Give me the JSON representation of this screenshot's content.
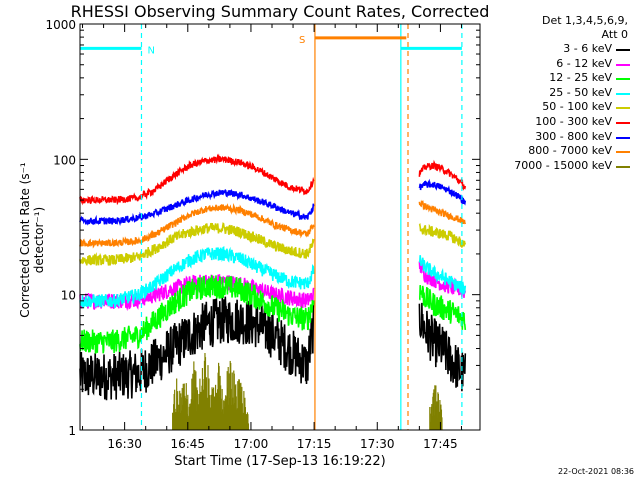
{
  "title": "RHESSI Observing Summary Count Rates, Corrected",
  "det_line1": "Det 1,3,4,5,6,9,",
  "det_line2": "Att 0",
  "timestamp": "22-Oct-2021 08:36",
  "chart_data": {
    "type": "line",
    "title": "RHESSI Observing Summary Count Rates, Corrected",
    "xlabel": "Start Time (17-Sep-13 16:19:22)",
    "ylabel": "Corrected Count Rate (s⁻¹ detector⁻¹)",
    "y_scale": "log",
    "ylim": [
      1,
      1000
    ],
    "xlim_minutes_after_1619": [
      0,
      95
    ],
    "x_tick_labels": [
      "16:30",
      "16:45",
      "17:00",
      "17:15",
      "17:30",
      "17:45"
    ],
    "x_tick_minutes": [
      10.6,
      25.6,
      40.6,
      55.6,
      70.6,
      85.6
    ],
    "y_tick_labels": [
      "1",
      "10",
      "100",
      "1000"
    ],
    "y_tick_values": [
      1,
      10,
      100,
      1000
    ],
    "grid": false,
    "legend_position": "right",
    "data_gaps_minutes": [
      [
        55.6,
        80.5
      ]
    ],
    "markers": [
      {
        "label": "N",
        "color": "#00ffff",
        "start": 0,
        "end": 14.6,
        "level": 660
      },
      {
        "label": "S",
        "color": "#ff8000",
        "start": 55.8,
        "end": 77.5,
        "level": 790
      },
      {
        "label": "",
        "color": "#00ffff",
        "start": 76.2,
        "end": 90.7,
        "level": 660
      }
    ],
    "vlines": [
      {
        "x": 14.6,
        "color": "#00ffff",
        "style": "dashed"
      },
      {
        "x": 55.8,
        "color": "#ff8000",
        "style": "solid"
      },
      {
        "x": 76.2,
        "color": "#00ffff",
        "style": "solid"
      },
      {
        "x": 77.9,
        "color": "#ff8000",
        "style": "dashed"
      },
      {
        "x": 90.7,
        "color": "#00ffff",
        "style": "dashed"
      }
    ],
    "series": [
      {
        "name": "3 - 6 keV",
        "color": "#000000",
        "x": [
          0,
          8,
          14,
          18,
          22,
          26,
          30,
          34,
          38,
          42,
          46,
          50,
          54,
          55.5,
          80.5,
          82,
          84,
          86,
          88,
          90,
          91.5
        ],
        "values": [
          2.5,
          2.5,
          2.6,
          3.2,
          4.0,
          5.0,
          6.0,
          6.5,
          6.5,
          6.0,
          5.0,
          3.8,
          3.0,
          6.0,
          7.0,
          5.5,
          4.5,
          4.0,
          3.3,
          2.8,
          2.5
        ],
        "noise": 0.18
      },
      {
        "name": "6 - 12 keV",
        "color": "#ff00ff",
        "x": [
          0,
          8,
          14,
          18,
          22,
          26,
          30,
          34,
          38,
          42,
          46,
          50,
          54,
          55.5,
          80.5,
          82,
          84,
          86,
          88,
          90,
          91.5
        ],
        "values": [
          9,
          9,
          9.2,
          10,
          11,
          12,
          12.5,
          12.5,
          12,
          11,
          10,
          9.5,
          9,
          10,
          17,
          14,
          13,
          12,
          11.5,
          11,
          10.5
        ],
        "noise": 0.06
      },
      {
        "name": "12 - 25 keV",
        "color": "#00ff00",
        "x": [
          0,
          8,
          14,
          18,
          22,
          26,
          30,
          34,
          38,
          42,
          46,
          50,
          54,
          55.5,
          80.5,
          82,
          84,
          86,
          88,
          90,
          91.5
        ],
        "values": [
          4.5,
          4.5,
          5.0,
          6.5,
          8.5,
          10.5,
          11.5,
          11.5,
          11,
          9.5,
          8,
          7,
          6.5,
          9,
          11,
          9.5,
          8.5,
          8,
          7.5,
          7,
          6.5
        ],
        "noise": 0.09
      },
      {
        "name": "25 - 50 keV",
        "color": "#00ffff",
        "x": [
          0,
          8,
          14,
          18,
          22,
          26,
          30,
          34,
          38,
          42,
          46,
          50,
          54,
          55.5,
          80.5,
          82,
          84,
          86,
          88,
          90,
          91.5
        ],
        "values": [
          9,
          9,
          10,
          12,
          15,
          18,
          20,
          20,
          18.5,
          16,
          14,
          12.5,
          12,
          15,
          18,
          16,
          14.5,
          13.5,
          12.5,
          11.5,
          11
        ],
        "noise": 0.05
      },
      {
        "name": "50 - 100 keV",
        "color": "#cccc00",
        "x": [
          0,
          8,
          14,
          18,
          22,
          26,
          30,
          34,
          38,
          42,
          46,
          50,
          54,
          55.5,
          80.5,
          82,
          84,
          86,
          88,
          90,
          91.5
        ],
        "values": [
          18,
          18,
          19,
          22,
          26,
          29,
          31,
          31,
          29,
          26,
          23,
          21,
          20,
          24,
          31,
          30,
          29,
          28,
          27,
          25,
          23
        ],
        "noise": 0.04
      },
      {
        "name": "100 - 300 keV",
        "color": "#ff0000",
        "x": [
          0,
          8,
          14,
          18,
          22,
          26,
          30,
          34,
          38,
          42,
          46,
          50,
          54,
          55.5,
          80.5,
          82,
          84,
          86,
          88,
          90,
          91.5
        ],
        "values": [
          50,
          50,
          52,
          60,
          75,
          90,
          98,
          100,
          95,
          85,
          72,
          62,
          58,
          70,
          78,
          88,
          90,
          85,
          78,
          70,
          62
        ],
        "noise": 0.025
      },
      {
        "name": "300 - 800 keV",
        "color": "#0000ff",
        "x": [
          0,
          8,
          14,
          18,
          22,
          26,
          30,
          34,
          38,
          42,
          46,
          50,
          54,
          55.5,
          80.5,
          82,
          84,
          86,
          88,
          90,
          91.5
        ],
        "values": [
          35,
          35,
          37,
          40,
          45,
          50,
          55,
          57,
          55,
          50,
          45,
          40,
          37,
          45,
          62,
          65,
          65,
          62,
          58,
          53,
          48
        ],
        "noise": 0.025
      },
      {
        "name": "800 - 7000 keV",
        "color": "#ff8000",
        "x": [
          0,
          8,
          14,
          18,
          22,
          26,
          30,
          34,
          38,
          42,
          46,
          50,
          54,
          55.5,
          80.5,
          82,
          84,
          86,
          88,
          90,
          91.5
        ],
        "values": [
          24,
          24,
          25,
          28,
          33,
          39,
          43,
          44,
          42,
          38,
          33,
          30,
          28,
          33,
          48,
          45,
          42,
          40,
          38,
          36,
          34
        ],
        "noise": 0.025
      },
      {
        "name": "7000 - 15000 keV",
        "color": "#808000",
        "x": [
          22,
          23,
          24,
          25,
          26,
          27,
          28,
          29,
          30,
          31,
          32,
          33,
          34,
          35,
          36,
          37,
          38,
          39,
          40,
          83,
          84,
          85,
          86
        ],
        "values": [
          1.3,
          2.4,
          1.6,
          2.0,
          1.4,
          2.6,
          1.8,
          2.2,
          3.2,
          1.6,
          2.0,
          2.6,
          1.5,
          2.2,
          2.8,
          1.8,
          2.4,
          1.6,
          1.3,
          1.3,
          2.0,
          1.6,
          1.4
        ],
        "noise": 0.0,
        "style": "spikes"
      }
    ]
  }
}
